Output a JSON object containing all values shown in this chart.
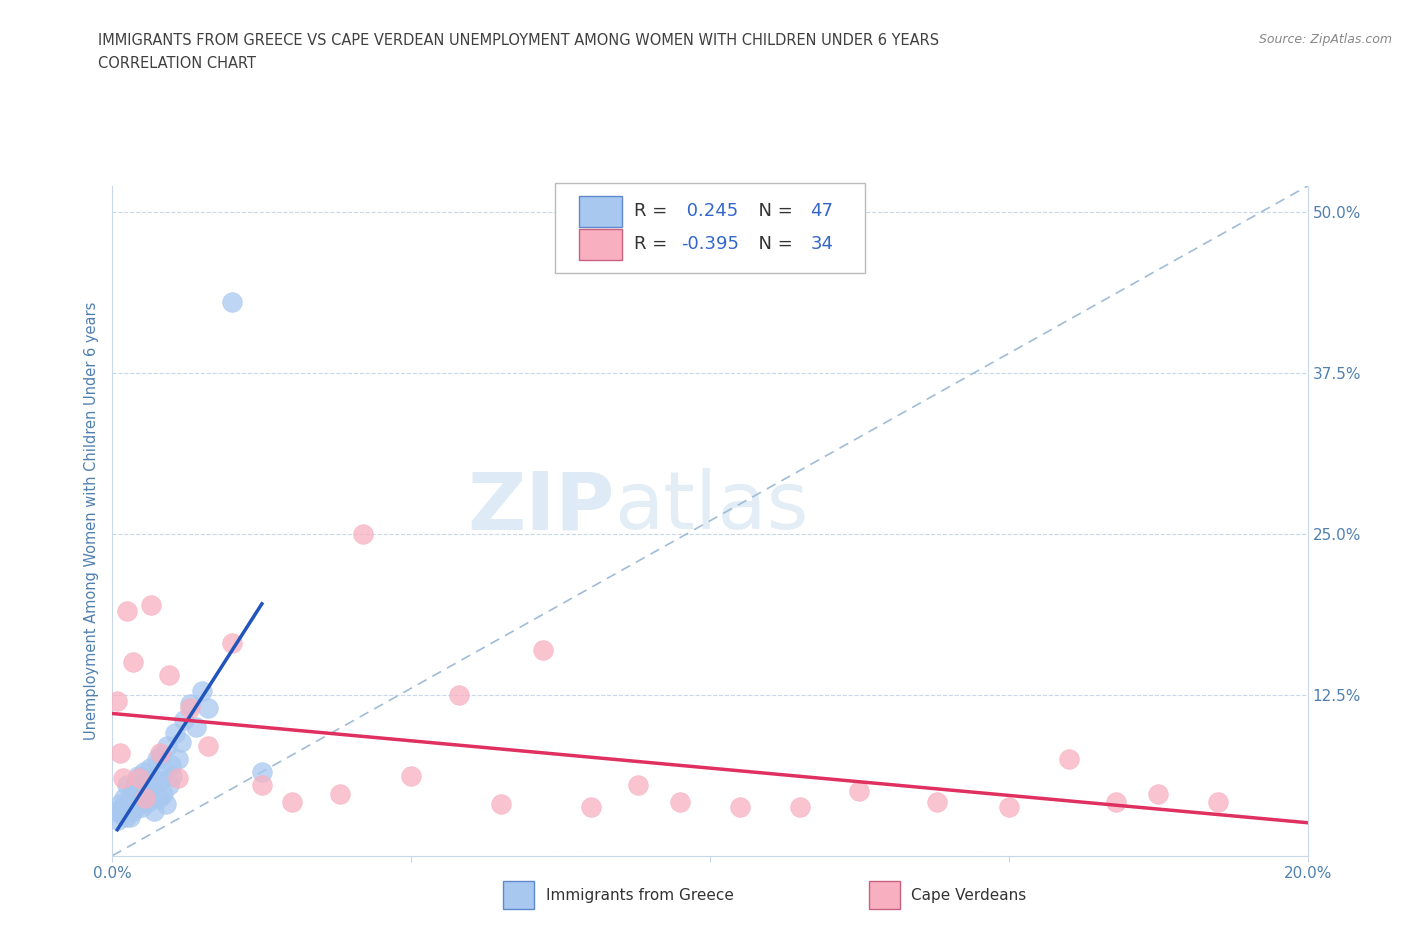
{
  "title_line1": "IMMIGRANTS FROM GREECE VS CAPE VERDEAN UNEMPLOYMENT AMONG WOMEN WITH CHILDREN UNDER 6 YEARS",
  "title_line2": "CORRELATION CHART",
  "source": "Source: ZipAtlas.com",
  "ylabel": "Unemployment Among Women with Children Under 6 years",
  "xlim": [
    0.0,
    0.2
  ],
  "ylim": [
    0.0,
    0.52
  ],
  "yticks": [
    0.0,
    0.125,
    0.25,
    0.375,
    0.5
  ],
  "ytick_labels_right": [
    "",
    "12.5%",
    "25.0%",
    "37.5%",
    "50.0%"
  ],
  "xticks": [
    0.0,
    0.05,
    0.1,
    0.15,
    0.2
  ],
  "xtick_labels": [
    "0.0%",
    "",
    "",
    "",
    "20.0%"
  ],
  "R_greece": 0.245,
  "N_greece": 47,
  "R_capeverde": -0.395,
  "N_capeverde": 34,
  "greece_color": "#a8c8f0",
  "capeverde_color": "#f8b0c0",
  "trendline_greece_color": "#2255bb",
  "trendline_capeverde_color": "#e03060",
  "trendline_diagonal_color": "#a0bcd8",
  "watermark_zip": "ZIP",
  "watermark_atlas": "atlas",
  "background_color": "#ffffff",
  "grid_color": "#c8d8e8",
  "title_color": "#404040",
  "axis_label_color": "#5080b0",
  "tick_color": "#5080b0",
  "greece_x": [
    0.0008,
    0.001,
    0.0012,
    0.0015,
    0.0018,
    0.002,
    0.0022,
    0.0025,
    0.0028,
    0.003,
    0.0032,
    0.0035,
    0.0038,
    0.004,
    0.0042,
    0.0045,
    0.0048,
    0.005,
    0.0052,
    0.0055,
    0.0058,
    0.006,
    0.0062,
    0.0065,
    0.0068,
    0.007,
    0.0075,
    0.0078,
    0.008,
    0.0082,
    0.0085,
    0.0088,
    0.009,
    0.0092,
    0.0095,
    0.0098,
    0.01,
    0.0105,
    0.011,
    0.0115,
    0.012,
    0.013,
    0.014,
    0.015,
    0.016,
    0.02,
    0.025
  ],
  "greece_y": [
    0.035,
    0.028,
    0.04,
    0.032,
    0.038,
    0.045,
    0.03,
    0.055,
    0.042,
    0.03,
    0.048,
    0.035,
    0.055,
    0.038,
    0.062,
    0.045,
    0.05,
    0.038,
    0.065,
    0.048,
    0.058,
    0.042,
    0.068,
    0.052,
    0.06,
    0.035,
    0.075,
    0.045,
    0.058,
    0.078,
    0.048,
    0.065,
    0.04,
    0.085,
    0.055,
    0.07,
    0.062,
    0.095,
    0.075,
    0.088,
    0.105,
    0.118,
    0.1,
    0.128,
    0.115,
    0.43,
    0.065
  ],
  "capeverde_x": [
    0.0008,
    0.0012,
    0.0018,
    0.0025,
    0.0035,
    0.0045,
    0.0055,
    0.0065,
    0.008,
    0.0095,
    0.011,
    0.013,
    0.016,
    0.02,
    0.025,
    0.03,
    0.038,
    0.042,
    0.05,
    0.058,
    0.065,
    0.072,
    0.08,
    0.088,
    0.095,
    0.105,
    0.115,
    0.125,
    0.138,
    0.15,
    0.16,
    0.168,
    0.175,
    0.185
  ],
  "capeverde_y": [
    0.12,
    0.08,
    0.06,
    0.19,
    0.15,
    0.06,
    0.045,
    0.195,
    0.08,
    0.14,
    0.06,
    0.115,
    0.085,
    0.165,
    0.055,
    0.042,
    0.048,
    0.25,
    0.062,
    0.125,
    0.04,
    0.16,
    0.038,
    0.055,
    0.042,
    0.038,
    0.038,
    0.05,
    0.042,
    0.038,
    0.075,
    0.042,
    0.048,
    0.042
  ]
}
